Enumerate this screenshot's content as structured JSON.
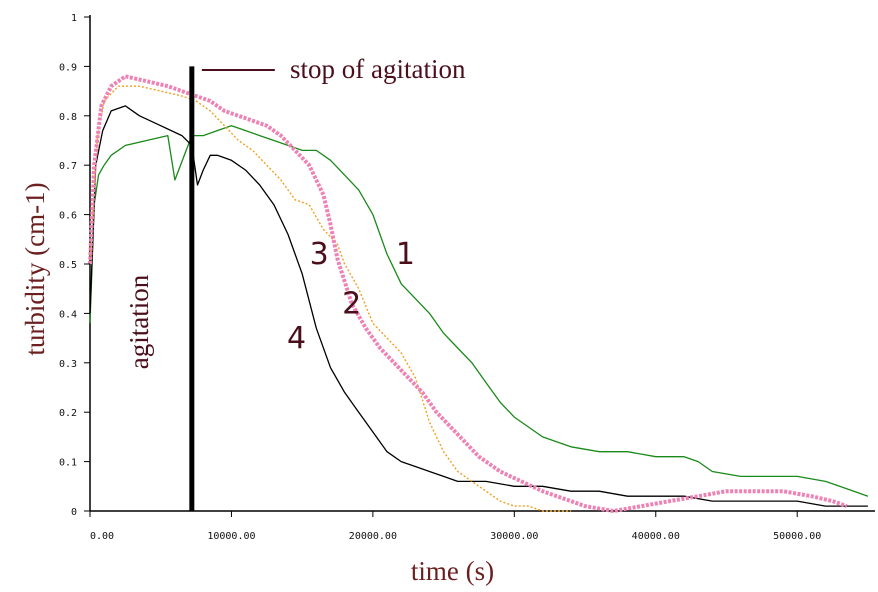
{
  "chart_data": {
    "type": "line",
    "xlabel": "time (s)",
    "ylabel": "turbidity (cm-1)",
    "xlim": [
      0,
      55500
    ],
    "ylim": [
      0,
      1
    ],
    "x_ticks": [
      0,
      10000,
      20000,
      30000,
      40000,
      50000
    ],
    "x_tick_labels": [
      "0.00",
      "10000.00",
      "20000.00",
      "30000.00",
      "40000.00",
      "50000.00"
    ],
    "y_ticks": [
      0,
      0.1,
      0.2,
      0.3,
      0.4,
      0.5,
      0.6,
      0.7,
      0.8,
      0.9,
      1
    ],
    "y_tick_labels": [
      "0",
      "0.1",
      "0.2",
      "0.3",
      "0.4",
      "0.5",
      "0.6",
      "0.7",
      "0.8",
      "0.9",
      "1"
    ],
    "grid": false,
    "stop_line": {
      "x": 7200,
      "y_top": 0.9,
      "label": "stop of agitation"
    },
    "agitation_label": "agitation",
    "series": [
      {
        "name": "1",
        "color": "#1a8a1a",
        "label_at": [
          22300,
          0.5
        ],
        "x": [
          0,
          300,
          600,
          1000,
          1500,
          2500,
          4000,
          5500,
          6000,
          7200,
          8000,
          9000,
          10000,
          11000,
          12000,
          13000,
          14000,
          15000,
          16000,
          17000,
          18000,
          19000,
          20000,
          21000,
          22000,
          23000,
          24000,
          25000,
          26000,
          27000,
          28000,
          29000,
          30000,
          32000,
          34000,
          36000,
          38000,
          40000,
          42000,
          43000,
          44000,
          46000,
          48000,
          50000,
          52000,
          53000,
          54000,
          55000
        ],
        "y": [
          0.38,
          0.62,
          0.68,
          0.7,
          0.72,
          0.74,
          0.75,
          0.76,
          0.67,
          0.76,
          0.76,
          0.77,
          0.78,
          0.77,
          0.76,
          0.75,
          0.74,
          0.73,
          0.73,
          0.71,
          0.68,
          0.65,
          0.6,
          0.52,
          0.46,
          0.43,
          0.4,
          0.36,
          0.33,
          0.3,
          0.26,
          0.22,
          0.19,
          0.15,
          0.13,
          0.12,
          0.12,
          0.11,
          0.11,
          0.1,
          0.08,
          0.07,
          0.07,
          0.07,
          0.06,
          0.05,
          0.04,
          0.03
        ]
      },
      {
        "name": "2",
        "color": "#ee82b4",
        "label_at": [
          18500,
          0.4
        ],
        "x": [
          0,
          300,
          800,
          1500,
          2500,
          4000,
          5500,
          6500,
          7500,
          8500,
          9500,
          10500,
          11500,
          12500,
          13500,
          14500,
          15500,
          16500,
          17000,
          17500,
          18500,
          19500,
          20500,
          21500,
          22500,
          23500,
          24500,
          25500,
          26500,
          27500,
          29000,
          30500,
          32000,
          33000,
          34000,
          35000,
          37000,
          39000,
          41000,
          43000,
          45000,
          47000,
          49000,
          51000,
          52500,
          53500
        ],
        "y": [
          0.5,
          0.7,
          0.82,
          0.86,
          0.88,
          0.87,
          0.86,
          0.85,
          0.84,
          0.83,
          0.81,
          0.8,
          0.79,
          0.78,
          0.76,
          0.73,
          0.7,
          0.64,
          0.58,
          0.51,
          0.42,
          0.37,
          0.33,
          0.3,
          0.27,
          0.24,
          0.2,
          0.17,
          0.14,
          0.11,
          0.08,
          0.06,
          0.04,
          0.03,
          0.02,
          0.01,
          0.0,
          0.01,
          0.02,
          0.03,
          0.04,
          0.04,
          0.04,
          0.03,
          0.02,
          0.01
        ]
      },
      {
        "name": "3",
        "color": "#f0a020",
        "label_at": [
          16200,
          0.5
        ],
        "x": [
          0,
          500,
          1000,
          2000,
          3500,
          5000,
          6500,
          7500,
          8500,
          9500,
          10500,
          11500,
          12500,
          13500,
          14500,
          15500,
          16500,
          17500,
          18000,
          19000,
          20000,
          21000,
          22000,
          23000,
          24000,
          25000,
          26000,
          27000,
          28000,
          29000,
          30000,
          31000,
          32000,
          33000,
          34000
        ],
        "y": [
          0.5,
          0.75,
          0.83,
          0.86,
          0.86,
          0.85,
          0.84,
          0.83,
          0.81,
          0.78,
          0.75,
          0.73,
          0.7,
          0.67,
          0.63,
          0.62,
          0.57,
          0.54,
          0.5,
          0.45,
          0.38,
          0.35,
          0.32,
          0.27,
          0.18,
          0.12,
          0.08,
          0.06,
          0.04,
          0.02,
          0.01,
          0.01,
          0.0,
          0.0,
          0.0
        ]
      },
      {
        "name": "4",
        "color": "#000000",
        "label_at": [
          14600,
          0.33
        ],
        "x": [
          0,
          400,
          900,
          1500,
          2500,
          3500,
          5000,
          6500,
          7200,
          7600,
          8000,
          8500,
          9000,
          10000,
          11000,
          12000,
          13000,
          14000,
          15000,
          16000,
          17000,
          18000,
          19000,
          20000,
          21000,
          22000,
          23000,
          24000,
          25000,
          26000,
          27000,
          28000,
          30000,
          32000,
          34000,
          36000,
          38000,
          40000,
          42000,
          44000,
          46000,
          48000,
          50000,
          52000,
          54000,
          55000
        ],
        "y": [
          0.4,
          0.7,
          0.77,
          0.81,
          0.82,
          0.8,
          0.78,
          0.76,
          0.74,
          0.66,
          0.69,
          0.72,
          0.72,
          0.71,
          0.69,
          0.66,
          0.62,
          0.56,
          0.48,
          0.37,
          0.29,
          0.24,
          0.2,
          0.16,
          0.12,
          0.1,
          0.09,
          0.08,
          0.07,
          0.06,
          0.06,
          0.06,
          0.05,
          0.05,
          0.04,
          0.04,
          0.03,
          0.03,
          0.03,
          0.02,
          0.02,
          0.02,
          0.02,
          0.01,
          0.01,
          0.01
        ]
      }
    ]
  }
}
